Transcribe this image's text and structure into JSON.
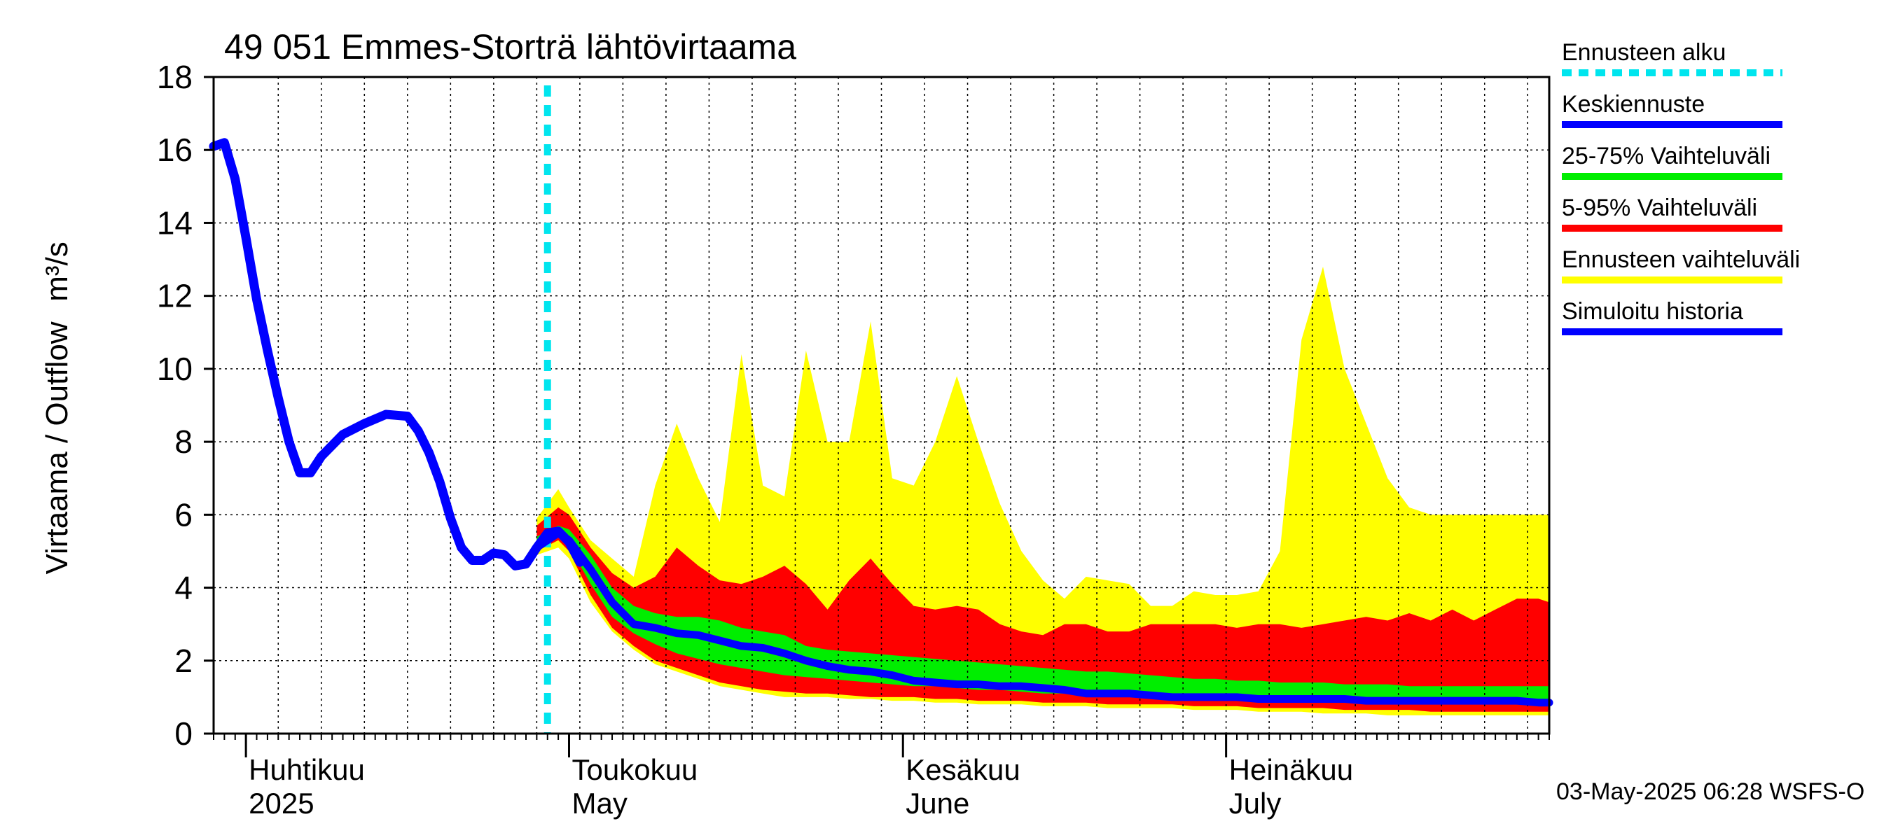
{
  "chart_data": {
    "type": "area",
    "title": "49 051 Emmes-Storträ lähtövirtaama",
    "ylabel": "Virtaama / Outflow",
    "yunit": "m³/s",
    "ylim": [
      0,
      18
    ],
    "yticks": [
      "0",
      "2",
      "4",
      "6",
      "8",
      "10",
      "12",
      "14",
      "16",
      "18"
    ],
    "xlim": [
      "2025-03-29",
      "2025-07-31"
    ],
    "grid": true,
    "legend_position": "right",
    "month_labels": [
      {
        "date": "2025-04-01",
        "line1": "Huhtikuu",
        "line2": "2025"
      },
      {
        "date": "2025-05-01",
        "line1": "Toukokuu",
        "line2": "May"
      },
      {
        "date": "2025-06-01",
        "line1": "Kesäkuu",
        "line2": "June"
      },
      {
        "date": "2025-07-01",
        "line1": "Heinäkuu",
        "line2": "July"
      }
    ],
    "forecast_start": "2025-04-29",
    "legend": [
      {
        "label": "Ennusteen alku",
        "color": "#00e5ee",
        "style": "dotted"
      },
      {
        "label": "Keskiennuste",
        "color": "#0000ff",
        "style": "solid"
      },
      {
        "label": "25-75% Vaihteluväli",
        "color": "#00ee00",
        "style": "solid"
      },
      {
        "label": "5-95% Vaihteluväli",
        "color": "#ff0000",
        "style": "solid"
      },
      {
        "label": "Ennusteen vaihteluväli",
        "color": "#ffff00",
        "style": "solid"
      },
      {
        "label": "Simuloitu historia",
        "color": "#0000ff",
        "style": "solid"
      }
    ],
    "colors": {
      "history": "#0000ff",
      "median": "#0000ff",
      "band_25_75": "#00ee00",
      "band_5_95": "#ff0000",
      "band_full": "#ffff00",
      "forecast_start": "#00e5ee"
    },
    "history": {
      "x": [
        "2025-03-29",
        "2025-03-30",
        "2025-03-31",
        "2025-04-01",
        "2025-04-02",
        "2025-04-03",
        "2025-04-04",
        "2025-04-05",
        "2025-04-06",
        "2025-04-07",
        "2025-04-08",
        "2025-04-10",
        "2025-04-12",
        "2025-04-14",
        "2025-04-16",
        "2025-04-17",
        "2025-04-18",
        "2025-04-19",
        "2025-04-20",
        "2025-04-21",
        "2025-04-22",
        "2025-04-23",
        "2025-04-24",
        "2025-04-25",
        "2025-04-26",
        "2025-04-27",
        "2025-04-28",
        "2025-04-29",
        "2025-04-30",
        "2025-05-01",
        "2025-05-02"
      ],
      "y": [
        16.1,
        16.2,
        15.2,
        13.6,
        11.9,
        10.5,
        9.2,
        8.0,
        7.15,
        7.15,
        7.6,
        8.2,
        8.5,
        8.75,
        8.7,
        8.3,
        7.7,
        6.9,
        5.9,
        5.1,
        4.75,
        4.75,
        4.95,
        4.9,
        4.6,
        4.65,
        5.1,
        5.5,
        5.55,
        5.25,
        4.7
      ]
    },
    "forecast": {
      "x": [
        "2025-04-28",
        "2025-04-30",
        "2025-05-01",
        "2025-05-03",
        "2025-05-05",
        "2025-05-07",
        "2025-05-09",
        "2025-05-11",
        "2025-05-13",
        "2025-05-15",
        "2025-05-17",
        "2025-05-19",
        "2025-05-21",
        "2025-05-23",
        "2025-05-25",
        "2025-05-27",
        "2025-05-29",
        "2025-05-31",
        "2025-06-02",
        "2025-06-04",
        "2025-06-06",
        "2025-06-08",
        "2025-06-10",
        "2025-06-12",
        "2025-06-14",
        "2025-06-16",
        "2025-06-18",
        "2025-06-20",
        "2025-06-22",
        "2025-06-24",
        "2025-06-26",
        "2025-06-28",
        "2025-06-30",
        "2025-07-02",
        "2025-07-04",
        "2025-07-06",
        "2025-07-08",
        "2025-07-10",
        "2025-07-12",
        "2025-07-14",
        "2025-07-16",
        "2025-07-18",
        "2025-07-20",
        "2025-07-22",
        "2025-07-24",
        "2025-07-26",
        "2025-07-28",
        "2025-07-30",
        "2025-07-31"
      ],
      "min": [
        4.9,
        5.1,
        4.8,
        3.6,
        2.8,
        2.3,
        1.9,
        1.7,
        1.5,
        1.3,
        1.2,
        1.1,
        1.0,
        1.0,
        1.0,
        0.95,
        0.95,
        0.9,
        0.9,
        0.85,
        0.85,
        0.8,
        0.8,
        0.8,
        0.75,
        0.75,
        0.75,
        0.7,
        0.7,
        0.7,
        0.7,
        0.65,
        0.65,
        0.65,
        0.6,
        0.6,
        0.6,
        0.55,
        0.55,
        0.55,
        0.5,
        0.5,
        0.5,
        0.5,
        0.5,
        0.5,
        0.5,
        0.5,
        0.5
      ],
      "p5": [
        5.0,
        5.3,
        5.0,
        3.8,
        2.9,
        2.4,
        2.0,
        1.8,
        1.6,
        1.4,
        1.3,
        1.2,
        1.15,
        1.1,
        1.1,
        1.05,
        1.0,
        1.0,
        1.0,
        0.95,
        0.95,
        0.9,
        0.9,
        0.9,
        0.85,
        0.85,
        0.85,
        0.8,
        0.8,
        0.8,
        0.8,
        0.75,
        0.75,
        0.75,
        0.7,
        0.7,
        0.7,
        0.7,
        0.65,
        0.65,
        0.65,
        0.65,
        0.6,
        0.6,
        0.6,
        0.6,
        0.6,
        0.6,
        0.6
      ],
      "p25": [
        5.2,
        5.45,
        5.15,
        4.1,
        3.2,
        2.75,
        2.45,
        2.2,
        2.05,
        1.9,
        1.8,
        1.7,
        1.6,
        1.55,
        1.5,
        1.45,
        1.4,
        1.35,
        1.3,
        1.3,
        1.25,
        1.2,
        1.2,
        1.15,
        1.1,
        1.1,
        1.05,
        1.05,
        1.0,
        1.0,
        1.0,
        0.95,
        0.95,
        0.95,
        0.9,
        0.9,
        0.9,
        0.9,
        0.85,
        0.85,
        0.85,
        0.85,
        0.85,
        0.8,
        0.8,
        0.8,
        0.8,
        0.8,
        0.8
      ],
      "median": [
        5.1,
        5.5,
        5.3,
        4.5,
        3.6,
        3.0,
        2.9,
        2.75,
        2.7,
        2.55,
        2.4,
        2.35,
        2.2,
        2.0,
        1.85,
        1.75,
        1.7,
        1.6,
        1.45,
        1.4,
        1.35,
        1.35,
        1.3,
        1.3,
        1.25,
        1.2,
        1.1,
        1.1,
        1.1,
        1.05,
        1.0,
        1.0,
        1.0,
        1.0,
        0.95,
        0.95,
        0.95,
        0.95,
        0.95,
        0.9,
        0.9,
        0.9,
        0.9,
        0.9,
        0.9,
        0.9,
        0.9,
        0.85,
        0.85
      ],
      "p75": [
        5.4,
        5.7,
        5.6,
        4.9,
        4.0,
        3.5,
        3.3,
        3.2,
        3.2,
        3.1,
        2.9,
        2.8,
        2.7,
        2.4,
        2.3,
        2.25,
        2.2,
        2.15,
        2.1,
        2.05,
        2.0,
        1.95,
        1.9,
        1.85,
        1.8,
        1.75,
        1.7,
        1.7,
        1.65,
        1.6,
        1.55,
        1.5,
        1.5,
        1.45,
        1.45,
        1.4,
        1.4,
        1.4,
        1.35,
        1.35,
        1.35,
        1.3,
        1.3,
        1.3,
        1.3,
        1.3,
        1.3,
        1.3,
        1.3
      ],
      "p95": [
        5.7,
        6.2,
        6.0,
        5.1,
        4.4,
        4.0,
        4.3,
        5.1,
        4.6,
        4.2,
        4.1,
        4.3,
        4.6,
        4.1,
        3.4,
        4.2,
        4.8,
        4.1,
        3.5,
        3.4,
        3.5,
        3.4,
        3.0,
        2.8,
        2.7,
        3.0,
        3.0,
        2.8,
        2.8,
        3.0,
        3.0,
        3.0,
        3.0,
        2.9,
        3.0,
        3.0,
        2.9,
        3.0,
        3.1,
        3.2,
        3.1,
        3.3,
        3.1,
        3.4,
        3.1,
        3.4,
        3.7,
        3.7,
        3.6
      ],
      "max": [
        5.9,
        6.7,
        6.2,
        5.3,
        4.8,
        4.3,
        6.8,
        8.5,
        7.0,
        5.8,
        10.4,
        6.8,
        6.5,
        10.5,
        8.0,
        8.0,
        11.3,
        7.0,
        6.8,
        8.0,
        9.8,
        8.0,
        6.3,
        5.0,
        4.2,
        3.7,
        4.3,
        4.2,
        4.1,
        3.5,
        3.5,
        3.9,
        3.8,
        3.8,
        3.9,
        5.0,
        10.8,
        12.8,
        10.0,
        8.5,
        7.0,
        6.2,
        6.0,
        6.0,
        6.0,
        6.0,
        6.0,
        6.0,
        6.0
      ]
    }
  },
  "footer": {
    "timestamp": "03-May-2025 06:28 WSFS-O"
  }
}
